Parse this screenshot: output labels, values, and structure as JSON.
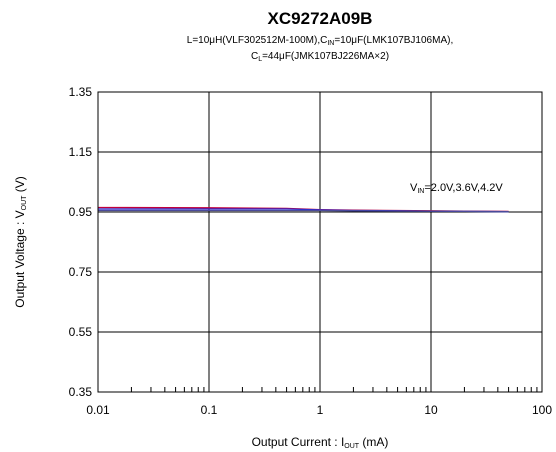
{
  "chart_data": {
    "type": "line",
    "title": "XC9272A09B",
    "subtitle": {
      "line1": {
        "a": "L=10μH(VLF302512M-100M),C",
        "a_sub": "IN",
        "b": "=10μF(LMK107BJ106MA),"
      },
      "line2": {
        "a": "C",
        "a_sub": "L",
        "b": "=44μF(JMK107BJ226MA×2)"
      }
    },
    "xlabel": {
      "main": "Output Current : I",
      "sub": "OUT",
      "tail": " (mA)"
    },
    "ylabel": {
      "main": "Output Voltage : V",
      "sub": "OUT",
      "tail": " (V)"
    },
    "x_scale": "log",
    "xlim": [
      0.01,
      100
    ],
    "ylim": [
      0.35,
      1.35
    ],
    "x_ticks": [
      {
        "value": 0.01,
        "label": "0.01"
      },
      {
        "value": 0.1,
        "label": "0.1"
      },
      {
        "value": 1,
        "label": "1"
      },
      {
        "value": 10,
        "label": "10"
      },
      {
        "value": 100,
        "label": "100"
      }
    ],
    "y_ticks": [
      {
        "value": 0.35,
        "label": "0.35"
      },
      {
        "value": 0.55,
        "label": "0.55"
      },
      {
        "value": 0.75,
        "label": "0.75"
      },
      {
        "value": 0.95,
        "label": "0.95"
      },
      {
        "value": 1.15,
        "label": "1.15"
      },
      {
        "value": 1.35,
        "label": "1.35"
      }
    ],
    "grid": true,
    "legend": "none",
    "annotation": {
      "a": "V",
      "a_sub": "IN",
      "b": "=2.0V,3.6V,4.2V"
    },
    "series": [
      {
        "color": "#c0003c",
        "x": [
          0.01,
          0.1,
          0.5,
          1,
          2,
          5,
          10,
          20,
          50
        ],
        "y": [
          0.965,
          0.964,
          0.962,
          0.958,
          0.956,
          0.955,
          0.954,
          0.953,
          0.952
        ]
      },
      {
        "color": "#2b2bd0",
        "x": [
          0.01,
          0.1,
          0.5,
          1,
          2,
          5,
          10,
          20,
          50
        ],
        "y": [
          0.96,
          0.96,
          0.96,
          0.957,
          0.955,
          0.954,
          0.953,
          0.952,
          0.951
        ]
      },
      {
        "color": "#4a4a9a",
        "x": [
          0.01,
          0.1,
          0.5,
          1,
          2,
          5,
          10,
          20,
          50
        ],
        "y": [
          0.955,
          0.955,
          0.955,
          0.955,
          0.954,
          0.953,
          0.953,
          0.952,
          0.951
        ]
      }
    ]
  }
}
